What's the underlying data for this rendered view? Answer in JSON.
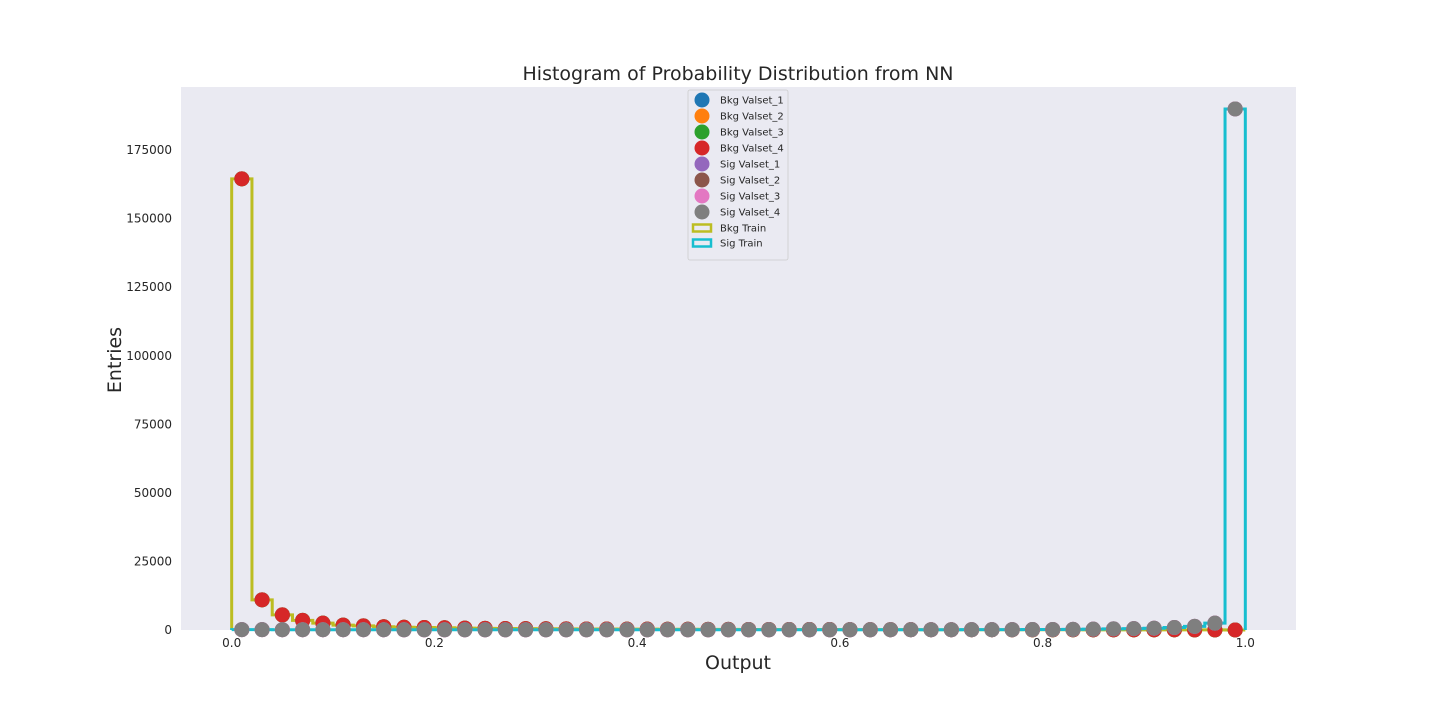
{
  "chart_data": {
    "type": "scatter",
    "title": "Histogram of Probability Distribution from NN",
    "xlabel": "Output",
    "ylabel": "Entries",
    "xlim": [
      -0.05,
      1.05
    ],
    "ylim": [
      0,
      198000
    ],
    "xticks": [
      "0.0",
      "0.2",
      "0.4",
      "0.6",
      "0.8",
      "1.0"
    ],
    "yticks": [
      "0",
      "25000",
      "50000",
      "75000",
      "100000",
      "125000",
      "150000",
      "175000"
    ],
    "grid": false,
    "background": "#eaeaf2",
    "legend_position": "top-center",
    "bin_edges": [
      0.0,
      0.02,
      0.04,
      0.06,
      0.08,
      0.1,
      0.12,
      0.14,
      0.16,
      0.18,
      0.2,
      0.22,
      0.24,
      0.26,
      0.28,
      0.3,
      0.32,
      0.34,
      0.36,
      0.38,
      0.4,
      0.42,
      0.44,
      0.46,
      0.48,
      0.5,
      0.52,
      0.54,
      0.56,
      0.58,
      0.6,
      0.62,
      0.64,
      0.66,
      0.68,
      0.7,
      0.72,
      0.74,
      0.76,
      0.78,
      0.8,
      0.82,
      0.84,
      0.86,
      0.88,
      0.9,
      0.92,
      0.94,
      0.96,
      0.98,
      1.0
    ],
    "x_centers": [
      0.01,
      0.03,
      0.05,
      0.07,
      0.09,
      0.11,
      0.13,
      0.15,
      0.17,
      0.19,
      0.21,
      0.23,
      0.25,
      0.27,
      0.29,
      0.31,
      0.33,
      0.35,
      0.37,
      0.39,
      0.41,
      0.43,
      0.45,
      0.47,
      0.49,
      0.51,
      0.53,
      0.55,
      0.57,
      0.59,
      0.61,
      0.63,
      0.65,
      0.67,
      0.69,
      0.71,
      0.73,
      0.75,
      0.77,
      0.79,
      0.81,
      0.83,
      0.85,
      0.87,
      0.89,
      0.91,
      0.93,
      0.95,
      0.97,
      0.99
    ],
    "series": [
      {
        "name": "Bkg Valset_1",
        "color": "#1f77b4",
        "kind": "marker",
        "values": [
          164500,
          11000,
          5500,
          3500,
          2500,
          1800,
          1500,
          1200,
          1000,
          900,
          800,
          700,
          600,
          550,
          500,
          450,
          400,
          380,
          350,
          320,
          300,
          280,
          260,
          240,
          220,
          200,
          190,
          180,
          170,
          160,
          150,
          140,
          130,
          120,
          110,
          100,
          95,
          90,
          85,
          80,
          75,
          70,
          65,
          60,
          55,
          50,
          45,
          40,
          35,
          0
        ]
      },
      {
        "name": "Bkg Valset_2",
        "color": "#ff7f0e",
        "kind": "marker",
        "values": [
          164500,
          11000,
          5500,
          3500,
          2500,
          1800,
          1500,
          1200,
          1000,
          900,
          800,
          700,
          600,
          550,
          500,
          450,
          400,
          380,
          350,
          320,
          300,
          280,
          260,
          240,
          220,
          200,
          190,
          180,
          170,
          160,
          150,
          140,
          130,
          120,
          110,
          100,
          95,
          90,
          85,
          80,
          75,
          70,
          65,
          60,
          55,
          50,
          45,
          40,
          35,
          0
        ]
      },
      {
        "name": "Bkg Valset_3",
        "color": "#2ca02c",
        "kind": "marker",
        "values": [
          164500,
          11000,
          5500,
          3500,
          2500,
          1800,
          1500,
          1200,
          1000,
          900,
          800,
          700,
          600,
          550,
          500,
          450,
          400,
          380,
          350,
          320,
          300,
          280,
          260,
          240,
          220,
          200,
          190,
          180,
          170,
          160,
          150,
          140,
          130,
          120,
          110,
          100,
          95,
          90,
          85,
          80,
          75,
          70,
          65,
          60,
          55,
          50,
          45,
          40,
          35,
          0
        ]
      },
      {
        "name": "Bkg Valset_4",
        "color": "#d62728",
        "kind": "marker",
        "values": [
          164500,
          11000,
          5500,
          3500,
          2500,
          1800,
          1500,
          1200,
          1000,
          900,
          800,
          700,
          600,
          550,
          500,
          450,
          400,
          380,
          350,
          320,
          300,
          280,
          260,
          240,
          220,
          200,
          190,
          180,
          170,
          160,
          150,
          140,
          130,
          120,
          110,
          100,
          95,
          90,
          85,
          80,
          75,
          70,
          65,
          60,
          55,
          50,
          45,
          40,
          35,
          0
        ]
      },
      {
        "name": "Sig Valset_1",
        "color": "#9467bd",
        "kind": "marker",
        "values": [
          150,
          120,
          110,
          100,
          100,
          95,
          90,
          90,
          85,
          85,
          80,
          80,
          80,
          80,
          75,
          75,
          75,
          70,
          70,
          70,
          70,
          70,
          70,
          70,
          70,
          75,
          75,
          75,
          80,
          80,
          85,
          85,
          90,
          95,
          100,
          110,
          120,
          130,
          150,
          170,
          200,
          250,
          300,
          400,
          500,
          650,
          900,
          1300,
          2500,
          190000
        ]
      },
      {
        "name": "Sig Valset_2",
        "color": "#8c564b",
        "kind": "marker",
        "values": [
          150,
          120,
          110,
          100,
          100,
          95,
          90,
          90,
          85,
          85,
          80,
          80,
          80,
          80,
          75,
          75,
          75,
          70,
          70,
          70,
          70,
          70,
          70,
          70,
          70,
          75,
          75,
          75,
          80,
          80,
          85,
          85,
          90,
          95,
          100,
          110,
          120,
          130,
          150,
          170,
          200,
          250,
          300,
          400,
          500,
          650,
          900,
          1300,
          2500,
          190000
        ]
      },
      {
        "name": "Sig Valset_3",
        "color": "#e377c2",
        "kind": "marker",
        "values": [
          150,
          120,
          110,
          100,
          100,
          95,
          90,
          90,
          85,
          85,
          80,
          80,
          80,
          80,
          75,
          75,
          75,
          70,
          70,
          70,
          70,
          70,
          70,
          70,
          70,
          75,
          75,
          75,
          80,
          80,
          85,
          85,
          90,
          95,
          100,
          110,
          120,
          130,
          150,
          170,
          200,
          250,
          300,
          400,
          500,
          650,
          900,
          1300,
          2500,
          190000
        ]
      },
      {
        "name": "Sig Valset_4",
        "color": "#7f7f7f",
        "kind": "marker",
        "values": [
          150,
          120,
          110,
          100,
          100,
          95,
          90,
          90,
          85,
          85,
          80,
          80,
          80,
          80,
          75,
          75,
          75,
          70,
          70,
          70,
          70,
          70,
          70,
          70,
          70,
          75,
          75,
          75,
          80,
          80,
          85,
          85,
          90,
          95,
          100,
          110,
          120,
          130,
          150,
          170,
          200,
          250,
          300,
          400,
          500,
          650,
          900,
          1300,
          2500,
          190000
        ]
      },
      {
        "name": "Bkg Train",
        "color": "#bcbd22",
        "kind": "step",
        "values": [
          164500,
          11000,
          5500,
          3500,
          2500,
          1800,
          1500,
          1200,
          1000,
          900,
          800,
          700,
          600,
          550,
          500,
          450,
          400,
          380,
          350,
          320,
          300,
          280,
          260,
          240,
          220,
          200,
          190,
          180,
          170,
          160,
          150,
          140,
          130,
          120,
          110,
          100,
          95,
          90,
          85,
          80,
          75,
          70,
          65,
          60,
          55,
          50,
          45,
          40,
          35,
          0
        ]
      },
      {
        "name": "Sig Train",
        "color": "#17becf",
        "kind": "step",
        "values": [
          150,
          120,
          110,
          100,
          100,
          95,
          90,
          90,
          85,
          85,
          80,
          80,
          80,
          80,
          75,
          75,
          75,
          70,
          70,
          70,
          70,
          70,
          70,
          70,
          70,
          75,
          75,
          75,
          80,
          80,
          85,
          85,
          90,
          95,
          100,
          110,
          120,
          130,
          150,
          170,
          200,
          250,
          300,
          400,
          500,
          650,
          900,
          1300,
          2500,
          190000
        ]
      }
    ]
  }
}
